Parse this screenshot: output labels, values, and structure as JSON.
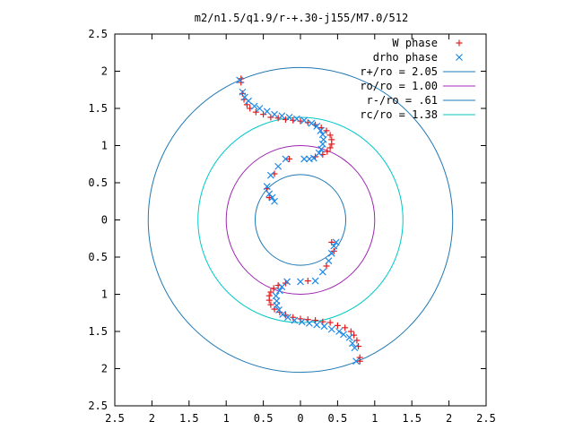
{
  "chart_data": {
    "type": "scatter",
    "title": "m2/n1.5/q1.9/r-+.30-j155/M7.0/512",
    "xlabel": "",
    "ylabel": "",
    "xlim": [
      -2.5,
      2.5
    ],
    "ylim": [
      -2.5,
      2.5
    ],
    "grid": false,
    "legend": "top-right",
    "x_tick_labels": [
      "2.5",
      "2",
      "1.5",
      "1",
      "0.5",
      "0",
      "0.5",
      "1",
      "1.5",
      "2",
      "2.5"
    ],
    "x_tick_values": [
      -2.5,
      -2,
      -1.5,
      -1,
      -0.5,
      0,
      0.5,
      1,
      1.5,
      2,
      2.5
    ],
    "y_tick_labels": [
      "2.5",
      "2",
      "1.5",
      "1",
      "0.5",
      "0",
      "0.5",
      "1",
      "1.5",
      "2",
      "2.5"
    ],
    "y_tick_values": [
      2.5,
      2,
      1.5,
      1,
      0.5,
      0,
      -0.5,
      -1,
      -1.5,
      -2,
      -2.5
    ],
    "series": [
      {
        "name": "W phase",
        "marker": "+",
        "color": "#e41a1c",
        "points": [
          [
            -0.8,
            1.9
          ],
          [
            -0.78,
            1.7
          ],
          [
            -0.72,
            1.55
          ],
          [
            -0.6,
            1.45
          ],
          [
            -0.4,
            1.38
          ],
          [
            -0.2,
            1.35
          ],
          [
            0,
            1.33
          ],
          [
            0.2,
            1.28
          ],
          [
            0.35,
            1.2
          ],
          [
            0.42,
            1.08
          ],
          [
            0.4,
            0.97
          ],
          [
            0.3,
            0.88
          ],
          [
            0.2,
            0.85
          ],
          [
            -0.8,
            1.85
          ],
          [
            -0.76,
            1.62
          ],
          [
            -0.68,
            1.5
          ],
          [
            -0.5,
            1.42
          ],
          [
            -0.3,
            1.37
          ],
          [
            -0.1,
            1.34
          ],
          [
            0.1,
            1.31
          ],
          [
            0.28,
            1.24
          ],
          [
            0.4,
            1.14
          ],
          [
            0.42,
            1.02
          ],
          [
            0.36,
            0.92
          ],
          [
            -0.15,
            0.82
          ],
          [
            -0.35,
            0.62
          ],
          [
            -0.45,
            0.42
          ],
          [
            -0.42,
            0.3
          ],
          [
            0.8,
            -1.9
          ],
          [
            0.78,
            -1.7
          ],
          [
            0.72,
            -1.55
          ],
          [
            0.6,
            -1.45
          ],
          [
            0.4,
            -1.38
          ],
          [
            0.2,
            -1.35
          ],
          [
            0,
            -1.33
          ],
          [
            -0.2,
            -1.28
          ],
          [
            -0.35,
            -1.2
          ],
          [
            -0.42,
            -1.08
          ],
          [
            -0.4,
            -0.97
          ],
          [
            -0.3,
            -0.88
          ],
          [
            -0.2,
            -0.85
          ],
          [
            0.8,
            -1.85
          ],
          [
            0.76,
            -1.62
          ],
          [
            0.68,
            -1.5
          ],
          [
            0.5,
            -1.42
          ],
          [
            0.3,
            -1.37
          ],
          [
            0.1,
            -1.34
          ],
          [
            -0.1,
            -1.31
          ],
          [
            -0.28,
            -1.24
          ],
          [
            -0.4,
            -1.14
          ],
          [
            -0.42,
            -1.02
          ],
          [
            -0.36,
            -0.92
          ],
          [
            0.1,
            -0.82
          ],
          [
            0.35,
            -0.62
          ],
          [
            0.45,
            -0.42
          ],
          [
            0.42,
            -0.3
          ]
        ]
      },
      {
        "name": "drho phase",
        "marker": "x",
        "color": "#1e88e5",
        "points": [
          [
            -0.82,
            1.88
          ],
          [
            -0.78,
            1.72
          ],
          [
            -0.7,
            1.6
          ],
          [
            -0.55,
            1.5
          ],
          [
            -0.35,
            1.42
          ],
          [
            -0.15,
            1.38
          ],
          [
            0.05,
            1.34
          ],
          [
            0.22,
            1.26
          ],
          [
            0.3,
            1.15
          ],
          [
            0.3,
            1.02
          ],
          [
            0.25,
            0.9
          ],
          [
            0.18,
            0.83
          ],
          [
            -0.75,
            1.65
          ],
          [
            -0.62,
            1.53
          ],
          [
            -0.45,
            1.46
          ],
          [
            -0.25,
            1.4
          ],
          [
            -0.05,
            1.36
          ],
          [
            0.15,
            1.3
          ],
          [
            0.27,
            1.2
          ],
          [
            0.31,
            1.08
          ],
          [
            0.28,
            0.95
          ],
          [
            -0.2,
            0.82
          ],
          [
            -0.3,
            0.72
          ],
          [
            -0.4,
            0.6
          ],
          [
            -0.45,
            0.45
          ],
          [
            -0.42,
            0.35
          ],
          [
            -0.38,
            0.3
          ],
          [
            -0.35,
            0.25
          ],
          [
            0.05,
            0.82
          ],
          [
            0.12,
            0.82
          ],
          [
            0.75,
            -1.9
          ],
          [
            0.73,
            -1.72
          ],
          [
            0.66,
            -1.58
          ],
          [
            0.52,
            -1.5
          ],
          [
            0.32,
            -1.43
          ],
          [
            0.12,
            -1.39
          ],
          [
            -0.08,
            -1.35
          ],
          [
            -0.24,
            -1.27
          ],
          [
            -0.32,
            -1.15
          ],
          [
            -0.33,
            -1.02
          ],
          [
            -0.25,
            -0.9
          ],
          [
            -0.18,
            -0.83
          ],
          [
            0.7,
            -1.66
          ],
          [
            0.58,
            -1.54
          ],
          [
            0.42,
            -1.47
          ],
          [
            0.22,
            -1.41
          ],
          [
            0.02,
            -1.37
          ],
          [
            -0.17,
            -1.31
          ],
          [
            -0.29,
            -1.21
          ],
          [
            -0.32,
            -1.09
          ],
          [
            -0.28,
            -0.95
          ],
          [
            0.0,
            -0.83
          ],
          [
            0.2,
            -0.82
          ],
          [
            0.3,
            -0.7
          ],
          [
            0.38,
            -0.55
          ],
          [
            0.42,
            -0.45
          ],
          [
            0.45,
            -0.35
          ],
          [
            0.48,
            -0.3
          ]
        ]
      },
      {
        "name": "r+/ro = 2.05",
        "marker": "circle",
        "color": "#1f78b4",
        "radius": 2.05
      },
      {
        "name": "ro/ro = 1.00",
        "marker": "circle",
        "color": "#9c27b0",
        "radius": 1.0
      },
      {
        "name": "r-/ro = .61",
        "marker": "circle",
        "color": "#1f78b4",
        "radius": 0.61
      },
      {
        "name": "rc/ro = 1.38",
        "marker": "circle",
        "color": "#00c8c8",
        "radius": 1.38
      }
    ]
  }
}
